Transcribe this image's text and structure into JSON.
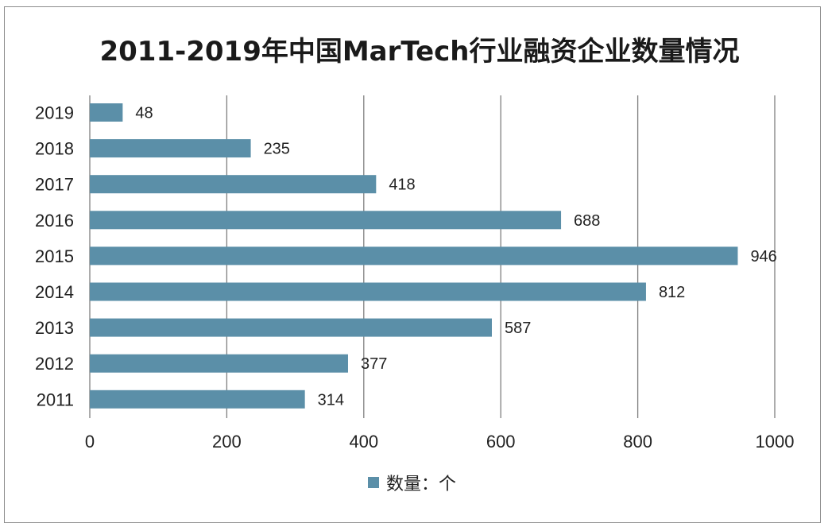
{
  "chart_data": {
    "type": "bar",
    "orientation": "horizontal",
    "title": "2011-2019年中国MarTech行业融资企业数量情况",
    "categories": [
      "2019",
      "2018",
      "2017",
      "2016",
      "2015",
      "2014",
      "2013",
      "2012",
      "2011"
    ],
    "series": [
      {
        "name": "数量：个",
        "values": [
          48,
          235,
          418,
          688,
          946,
          812,
          587,
          377,
          314
        ],
        "color": "#5b8fa8"
      }
    ],
    "xlim": [
      0,
      1000
    ],
    "x_ticks": [
      "0",
      "200",
      "400",
      "600",
      "800",
      "1000"
    ],
    "grid": "vertical",
    "legend_position": "bottom"
  }
}
